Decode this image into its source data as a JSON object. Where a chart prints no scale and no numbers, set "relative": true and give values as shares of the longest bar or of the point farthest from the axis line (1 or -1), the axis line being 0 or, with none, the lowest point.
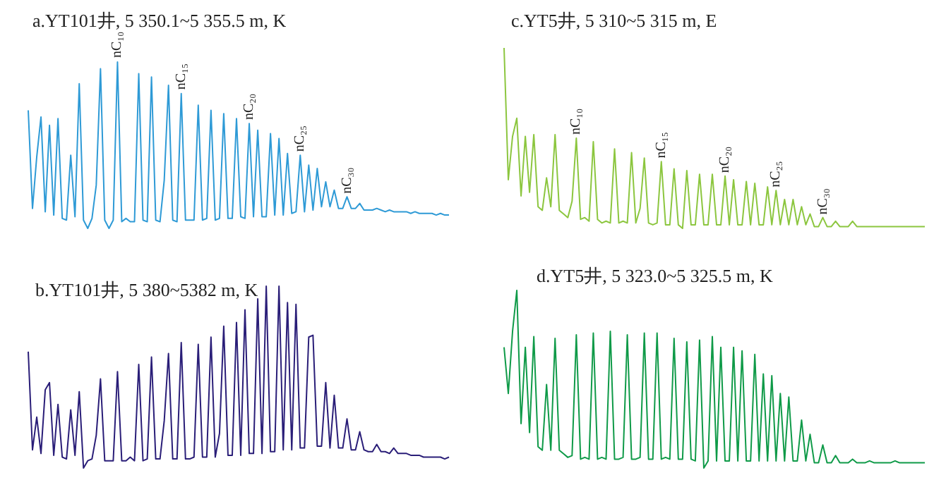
{
  "chart_data": [
    {
      "type": "line",
      "relative": true,
      "title": "a.YT101井, 5 350.1~5 355.5 m, K",
      "categories": [
        null,
        null,
        null,
        null,
        null,
        null,
        null,
        null,
        null,
        null,
        null,
        null,
        null,
        null,
        null,
        null,
        null,
        null,
        null,
        null,
        null,
        null,
        null,
        null,
        null,
        null,
        null,
        null,
        null,
        null,
        null,
        null,
        null,
        null,
        null,
        null,
        null,
        null,
        null,
        null,
        null,
        null,
        null,
        null,
        null,
        null,
        null,
        null,
        null,
        null,
        null,
        null,
        null,
        null,
        null,
        null,
        null,
        null,
        null,
        null,
        null,
        null,
        null,
        null,
        null,
        null,
        null,
        null,
        null,
        null,
        null,
        null,
        null,
        null,
        null,
        null,
        null,
        null,
        null,
        null,
        null,
        null,
        null,
        null,
        null,
        null,
        null,
        null,
        null,
        null,
        null,
        null,
        null,
        null,
        null,
        null,
        null,
        null,
        null,
        null
      ],
      "series": [
        {
          "color": "#2e9ad6",
          "values": [
            0.71,
            0.12,
            0.43,
            0.67,
            0.1,
            0.62,
            0.08,
            0.66,
            0.06,
            0.05,
            0.44,
            0.07,
            0.87,
            0.05,
            0.0,
            0.06,
            0.26,
            0.96,
            0.05,
            0.0,
            0.05,
            1.0,
            0.04,
            0.06,
            0.04,
            0.04,
            0.93,
            0.05,
            0.04,
            0.91,
            0.05,
            0.04,
            0.29,
            0.86,
            0.05,
            0.04,
            0.81,
            0.05,
            0.05,
            0.05,
            0.74,
            0.05,
            0.06,
            0.71,
            0.05,
            0.06,
            0.69,
            0.06,
            0.06,
            0.66,
            0.07,
            0.06,
            0.63,
            0.07,
            0.59,
            0.07,
            0.07,
            0.57,
            0.08,
            0.54,
            0.08,
            0.45,
            0.09,
            0.1,
            0.44,
            0.1,
            0.38,
            0.11,
            0.36,
            0.13,
            0.28,
            0.13,
            0.23,
            0.12,
            0.12,
            0.19,
            0.12,
            0.12,
            0.15,
            0.11,
            0.11,
            0.11,
            0.12,
            0.11,
            0.1,
            0.11,
            0.1,
            0.1,
            0.1,
            0.1,
            0.09,
            0.1,
            0.09,
            0.09,
            0.09,
            0.09,
            0.08,
            0.09,
            0.08,
            0.08
          ]
        }
      ],
      "annotations": [
        "nC₁₀",
        "nC₁₅",
        "nC₂₀",
        "nC₂₅",
        "nC₃₀"
      ]
    },
    {
      "type": "line",
      "relative": true,
      "title": "c.YT5井, 5 310~5 315 m, E",
      "categories": [
        null,
        null,
        null,
        null,
        null,
        null,
        null,
        null,
        null,
        null,
        null,
        null,
        null,
        null,
        null,
        null,
        null,
        null,
        null,
        null,
        null,
        null,
        null,
        null,
        null,
        null,
        null,
        null,
        null,
        null,
        null,
        null,
        null,
        null,
        null,
        null,
        null,
        null,
        null,
        null,
        null,
        null,
        null,
        null,
        null,
        null,
        null,
        null,
        null,
        null,
        null,
        null,
        null,
        null,
        null,
        null,
        null,
        null,
        null,
        null,
        null,
        null,
        null,
        null,
        null,
        null,
        null,
        null,
        null,
        null,
        null,
        null,
        null,
        null,
        null,
        null,
        null,
        null,
        null,
        null,
        null,
        null,
        null,
        null,
        null,
        null,
        null,
        null,
        null,
        null,
        null,
        null,
        null,
        null,
        null,
        null,
        null,
        null,
        null,
        null
      ],
      "series": [
        {
          "color": "#8cc63f",
          "values": [
            1.0,
            0.27,
            0.51,
            0.61,
            0.18,
            0.51,
            0.2,
            0.52,
            0.12,
            0.1,
            0.28,
            0.12,
            0.52,
            0.1,
            0.08,
            0.06,
            0.15,
            0.5,
            0.05,
            0.06,
            0.04,
            0.48,
            0.05,
            0.03,
            0.04,
            0.03,
            0.44,
            0.03,
            0.04,
            0.03,
            0.42,
            0.03,
            0.11,
            0.39,
            0.03,
            0.02,
            0.03,
            0.37,
            0.02,
            0.02,
            0.33,
            0.02,
            0.0,
            0.32,
            0.02,
            0.02,
            0.3,
            0.02,
            0.02,
            0.3,
            0.02,
            0.02,
            0.29,
            0.02,
            0.27,
            0.02,
            0.02,
            0.26,
            0.02,
            0.25,
            0.02,
            0.02,
            0.23,
            0.02,
            0.21,
            0.02,
            0.16,
            0.02,
            0.16,
            0.02,
            0.12,
            0.02,
            0.08,
            0.01,
            0.01,
            0.06,
            0.01,
            0.01,
            0.04,
            0.01,
            0.01,
            0.01,
            0.04,
            0.01,
            0.01,
            0.01,
            0.01,
            0.01,
            0.01,
            0.01,
            0.01,
            0.01,
            0.01,
            0.01,
            0.01,
            0.01,
            0.01,
            0.01,
            0.01,
            0.01
          ]
        }
      ],
      "annotations": [
        "nC₁₀",
        "nC₁₅",
        "nC₂₀",
        "nC₂₅",
        "nC₃₀"
      ]
    },
    {
      "type": "line",
      "relative": true,
      "title": "b.YT101井, 5 380~5382 m, K",
      "categories": [
        null,
        null,
        null,
        null,
        null,
        null,
        null,
        null,
        null,
        null,
        null,
        null,
        null,
        null,
        null,
        null,
        null,
        null,
        null,
        null,
        null,
        null,
        null,
        null,
        null,
        null,
        null,
        null,
        null,
        null,
        null,
        null,
        null,
        null,
        null,
        null,
        null,
        null,
        null,
        null,
        null,
        null,
        null,
        null,
        null,
        null,
        null,
        null,
        null,
        null,
        null,
        null,
        null,
        null,
        null,
        null,
        null,
        null,
        null,
        null,
        null,
        null,
        null,
        null,
        null,
        null,
        null,
        null,
        null,
        null,
        null,
        null,
        null,
        null,
        null,
        null,
        null,
        null,
        null,
        null,
        null,
        null,
        null,
        null,
        null,
        null,
        null,
        null,
        null,
        null,
        null,
        null,
        null,
        null,
        null,
        null,
        null,
        null,
        null,
        null
      ],
      "series": [
        {
          "color": "#2a1e78",
          "values": [
            0.64,
            0.1,
            0.28,
            0.08,
            0.43,
            0.47,
            0.07,
            0.35,
            0.06,
            0.05,
            0.32,
            0.07,
            0.42,
            0.0,
            0.04,
            0.05,
            0.18,
            0.49,
            0.04,
            0.04,
            0.04,
            0.53,
            0.04,
            0.04,
            0.06,
            0.04,
            0.57,
            0.04,
            0.05,
            0.61,
            0.05,
            0.05,
            0.26,
            0.63,
            0.05,
            0.05,
            0.69,
            0.05,
            0.05,
            0.06,
            0.68,
            0.06,
            0.06,
            0.72,
            0.06,
            0.19,
            0.78,
            0.07,
            0.07,
            0.8,
            0.07,
            0.87,
            0.08,
            0.08,
            0.93,
            0.08,
            1.0,
            0.09,
            0.09,
            1.0,
            0.1,
            0.91,
            0.1,
            0.9,
            0.11,
            0.11,
            0.72,
            0.73,
            0.12,
            0.12,
            0.47,
            0.11,
            0.4,
            0.11,
            0.11,
            0.27,
            0.1,
            0.1,
            0.2,
            0.1,
            0.09,
            0.09,
            0.13,
            0.09,
            0.09,
            0.08,
            0.11,
            0.08,
            0.08,
            0.08,
            0.07,
            0.07,
            0.07,
            0.06,
            0.06,
            0.06,
            0.06,
            0.06,
            0.05,
            0.06
          ]
        }
      ]
    },
    {
      "type": "line",
      "relative": true,
      "title": "d.YT5井, 5 323.0~5 325.5 m, K",
      "categories": [
        null,
        null,
        null,
        null,
        null,
        null,
        null,
        null,
        null,
        null,
        null,
        null,
        null,
        null,
        null,
        null,
        null,
        null,
        null,
        null,
        null,
        null,
        null,
        null,
        null,
        null,
        null,
        null,
        null,
        null,
        null,
        null,
        null,
        null,
        null,
        null,
        null,
        null,
        null,
        null,
        null,
        null,
        null,
        null,
        null,
        null,
        null,
        null,
        null,
        null,
        null,
        null,
        null,
        null,
        null,
        null,
        null,
        null,
        null,
        null,
        null,
        null,
        null,
        null,
        null,
        null,
        null,
        null,
        null,
        null,
        null,
        null,
        null,
        null,
        null,
        null,
        null,
        null,
        null,
        null,
        null,
        null,
        null,
        null,
        null,
        null,
        null,
        null,
        null,
        null,
        null,
        null,
        null,
        null,
        null,
        null,
        null,
        null,
        null,
        null
      ],
      "series": [
        {
          "color": "#0f9a48",
          "values": [
            0.68,
            0.42,
            0.77,
            1.0,
            0.25,
            0.68,
            0.2,
            0.74,
            0.12,
            0.1,
            0.47,
            0.1,
            0.73,
            0.1,
            0.08,
            0.06,
            0.07,
            0.75,
            0.05,
            0.06,
            0.05,
            0.76,
            0.05,
            0.06,
            0.05,
            0.77,
            0.05,
            0.05,
            0.06,
            0.75,
            0.05,
            0.05,
            0.06,
            0.76,
            0.05,
            0.05,
            0.76,
            0.05,
            0.06,
            0.05,
            0.73,
            0.05,
            0.05,
            0.71,
            0.05,
            0.04,
            0.72,
            0.0,
            0.04,
            0.74,
            0.04,
            0.68,
            0.04,
            0.04,
            0.68,
            0.04,
            0.66,
            0.04,
            0.04,
            0.64,
            0.04,
            0.53,
            0.04,
            0.52,
            0.04,
            0.42,
            0.04,
            0.4,
            0.04,
            0.04,
            0.27,
            0.04,
            0.19,
            0.03,
            0.03,
            0.13,
            0.03,
            0.03,
            0.07,
            0.03,
            0.03,
            0.03,
            0.05,
            0.03,
            0.03,
            0.03,
            0.04,
            0.03,
            0.03,
            0.03,
            0.03,
            0.03,
            0.04,
            0.03,
            0.03,
            0.03,
            0.03,
            0.03,
            0.03,
            0.03
          ]
        }
      ]
    }
  ]
}
